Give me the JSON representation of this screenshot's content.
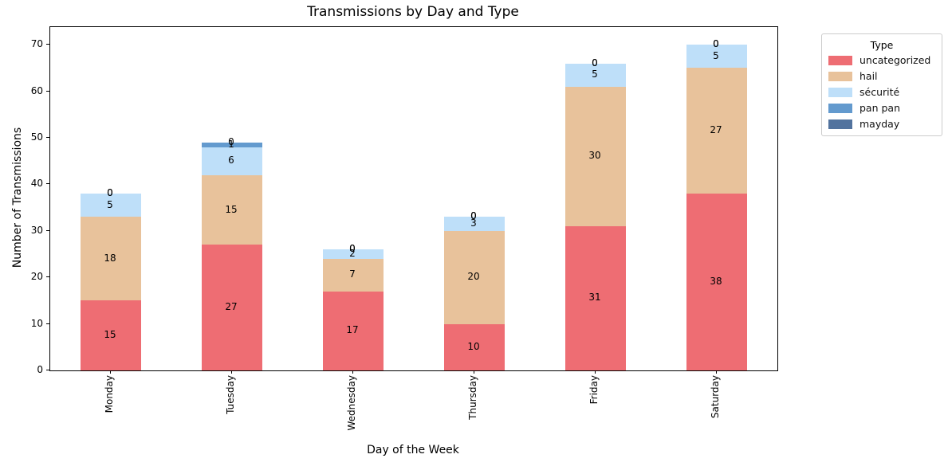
{
  "title": "Transmissions by Day and Type",
  "xlabel": "Day of the Week",
  "ylabel": "Number of Transmissions",
  "legend": {
    "title": "Type"
  },
  "chart_data": {
    "type": "bar",
    "stacked": true,
    "title": "Transmissions by Day and Type",
    "xlabel": "Day of the Week",
    "ylabel": "Number of Transmissions",
    "categories": [
      "Monday",
      "Tuesday",
      "Wednesday",
      "Thursday",
      "Friday",
      "Saturday"
    ],
    "series": [
      {
        "name": "uncategorized",
        "color": "#ee6d73",
        "values": [
          15,
          27,
          17,
          10,
          31,
          38
        ]
      },
      {
        "name": "hail",
        "color": "#e8c29b",
        "values": [
          18,
          15,
          7,
          20,
          30,
          27
        ]
      },
      {
        "name": "sécurité",
        "color": "#bedff9",
        "values": [
          5,
          6,
          2,
          3,
          5,
          5
        ]
      },
      {
        "name": "pan pan",
        "color": "#639ace",
        "values": [
          0,
          1,
          0,
          0,
          0,
          0
        ]
      },
      {
        "name": "mayday",
        "color": "#52739e",
        "values": [
          0,
          0,
          0,
          0,
          0,
          0
        ]
      }
    ],
    "totals": [
      38,
      49,
      26,
      33,
      66,
      70
    ],
    "yticks": [
      0,
      10,
      20,
      30,
      40,
      50,
      60,
      70
    ],
    "ylim": [
      0,
      73.8
    ],
    "bar_labels": "value centered in each segment, zeros shown at baseline",
    "grid": false,
    "legend_position": "outside upper right"
  }
}
